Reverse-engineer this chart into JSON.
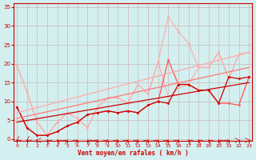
{
  "bg_color": "#d4efef",
  "grid_color": "#c8b8b8",
  "xlabel": "Vent moyen/en rafales ( km/h )",
  "tick_color": "#cc0000",
  "yticks": [
    0,
    5,
    10,
    15,
    20,
    25,
    30,
    35
  ],
  "xticks": [
    0,
    1,
    2,
    3,
    4,
    5,
    6,
    7,
    8,
    9,
    10,
    11,
    12,
    13,
    14,
    15,
    16,
    17,
    18,
    19,
    20,
    21,
    22,
    23
  ],
  "xlim": [
    -0.3,
    23.3
  ],
  "ylim": [
    -0.5,
    36
  ],
  "series": [
    {
      "x": [
        0,
        1,
        2,
        3,
        4,
        5,
        6,
        7,
        8,
        9,
        10,
        11,
        12,
        13,
        14,
        15,
        16,
        17,
        18,
        19,
        20,
        21,
        22,
        23
      ],
      "y": [
        19.5,
        12.5,
        4.5,
        1.0,
        4.5,
        7.0,
        5.5,
        3.0,
        8.5,
        11.0,
        11.0,
        9.5,
        14.5,
        12.0,
        20.5,
        32.5,
        28.5,
        25.5,
        19.0,
        19.0,
        23.0,
        16.0,
        22.5,
        23.0
      ],
      "color": "#ffaaaa",
      "lw": 0.8,
      "marker": "D",
      "ms": 1.5
    },
    {
      "x": [
        0,
        1,
        2,
        3,
        4,
        5,
        6,
        7,
        8,
        9,
        10,
        11,
        12,
        13,
        14,
        15,
        16,
        17,
        18,
        19,
        20,
        21,
        22,
        23
      ],
      "y": [
        19.5,
        12.5,
        4.5,
        1.0,
        4.5,
        7.0,
        5.5,
        3.0,
        8.5,
        11.0,
        11.0,
        9.5,
        14.5,
        12.0,
        20.5,
        11.0,
        13.5,
        14.5,
        19.0,
        19.0,
        23.0,
        16.0,
        22.5,
        23.0
      ],
      "color": "#ffaaaa",
      "lw": 0.8,
      "marker": null
    },
    {
      "x": [
        0,
        1,
        2,
        3,
        4,
        5,
        6,
        7,
        8,
        9,
        10,
        11,
        12,
        13,
        14,
        15,
        16,
        17,
        18,
        19,
        20,
        21,
        22,
        23
      ],
      "y": [
        8.5,
        3.0,
        1.0,
        1.0,
        2.0,
        3.5,
        4.5,
        6.5,
        7.0,
        7.5,
        7.0,
        7.5,
        7.0,
        9.0,
        10.0,
        21.0,
        14.5,
        14.5,
        13.0,
        13.0,
        9.5,
        9.5,
        9.0,
        16.5
      ],
      "color": "#ff5555",
      "lw": 0.9,
      "marker": "D",
      "ms": 1.5
    },
    {
      "x": [
        0,
        1,
        2,
        3,
        4,
        5,
        6,
        7,
        8,
        9,
        10,
        11,
        12,
        13,
        14,
        15,
        16,
        17,
        18,
        19,
        20,
        21,
        22,
        23
      ],
      "y": [
        8.5,
        3.0,
        1.0,
        1.0,
        2.0,
        3.5,
        4.5,
        6.5,
        7.0,
        7.5,
        7.0,
        7.5,
        7.0,
        9.0,
        10.0,
        9.5,
        14.5,
        14.5,
        13.0,
        13.0,
        9.5,
        16.5,
        16.0,
        16.5
      ],
      "color": "#cc0000",
      "lw": 0.9,
      "marker": "D",
      "ms": 1.5
    },
    {
      "x": [
        0,
        23
      ],
      "y": [
        7.0,
        23.0
      ],
      "color": "#ffaaaa",
      "lw": 0.9,
      "marker": null
    },
    {
      "x": [
        0,
        23
      ],
      "y": [
        5.5,
        19.0
      ],
      "color": "#ff7777",
      "lw": 0.9,
      "marker": null
    },
    {
      "x": [
        0,
        23
      ],
      "y": [
        4.5,
        15.0
      ],
      "color": "#cc0000",
      "lw": 0.9,
      "marker": null
    }
  ],
  "wind_symbols_y": -0.3,
  "wind_angles": [
    225,
    225,
    270,
    315,
    315,
    45,
    45,
    315,
    45,
    45,
    45,
    45,
    45,
    45,
    45,
    45,
    45,
    315,
    315,
    315,
    315,
    45,
    90,
    90
  ]
}
